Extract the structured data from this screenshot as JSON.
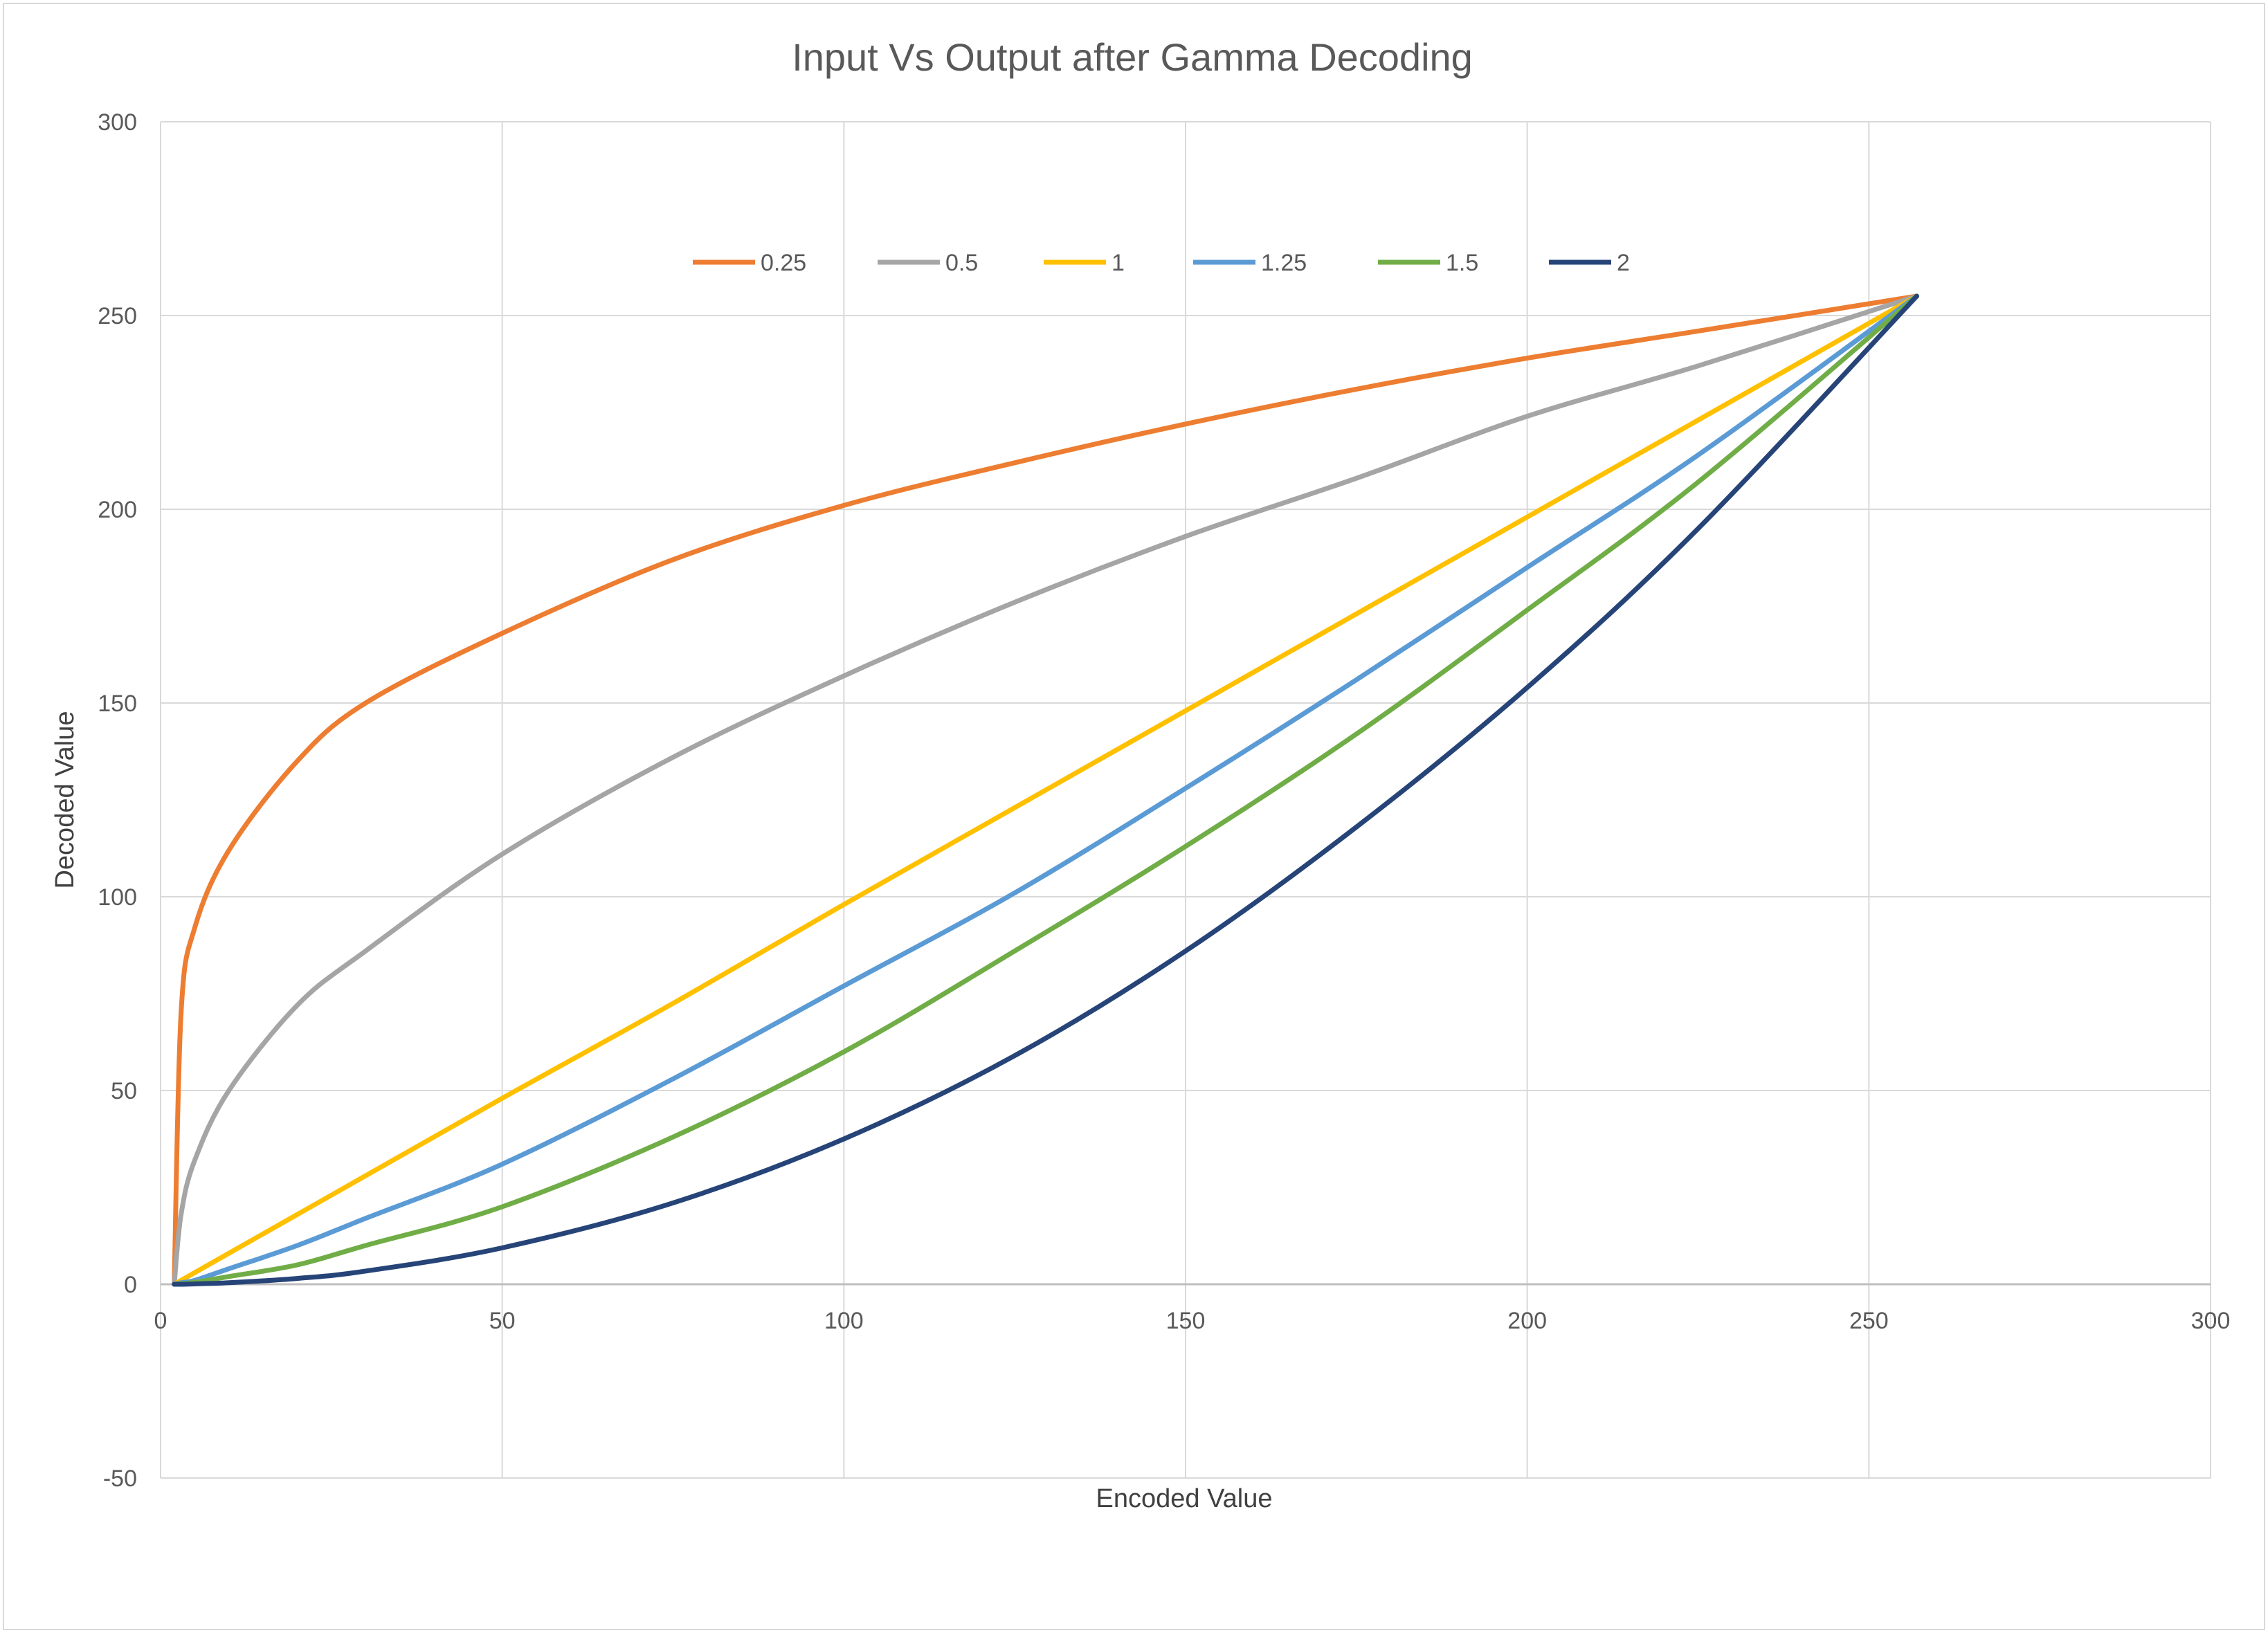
{
  "chart_data": {
    "type": "line",
    "title": "Input Vs Output after Gamma Decoding",
    "xlabel": "Encoded Value",
    "ylabel": "Decoded Value",
    "xlim": [
      0,
      300
    ],
    "ylim": [
      -50,
      300
    ],
    "x_ticks": [
      0,
      50,
      100,
      150,
      200,
      250,
      300
    ],
    "y_ticks": [
      -50,
      0,
      50,
      100,
      150,
      200,
      250,
      300
    ],
    "grid": true,
    "legend_position": "top",
    "x": [
      2,
      3,
      5,
      10,
      20,
      30,
      50,
      75,
      100,
      125,
      150,
      175,
      200,
      225,
      257
    ],
    "series": [
      {
        "name": "0.25",
        "color": "#ED7D31",
        "values": [
          0,
          70,
          92,
          112,
          135,
          150,
          168,
          187,
          201,
          212,
          222,
          231,
          239,
          246,
          255
        ]
      },
      {
        "name": "0.5",
        "color": "#A5A5A5",
        "values": [
          0,
          18,
          32,
          50,
          72,
          86,
          111,
          136,
          157,
          176,
          193,
          208,
          224,
          237,
          255
        ]
      },
      {
        "name": "1",
        "color": "#FFC000",
        "values": [
          0,
          1,
          3,
          8,
          18,
          28,
          48,
          72.5,
          98,
          123,
          148,
          173,
          198,
          223,
          255
        ]
      },
      {
        "name": "1.25",
        "color": "#5B9BD5",
        "values": [
          0,
          0.4,
          1,
          4,
          10,
          17,
          31,
          53,
          77,
          101,
          128,
          156,
          185,
          214,
          255
        ]
      },
      {
        "name": "1.5",
        "color": "#70AD47",
        "values": [
          0,
          0.2,
          0.5,
          2,
          5,
          10,
          20,
          38,
          60,
          86,
          113,
          142,
          174,
          207,
          255
        ]
      },
      {
        "name": "2",
        "color": "#264478",
        "values": [
          0,
          0,
          0.1,
          0.4,
          1.5,
          3.4,
          9.4,
          21,
          37.5,
          59,
          86,
          118,
          154,
          195,
          255
        ]
      }
    ]
  }
}
